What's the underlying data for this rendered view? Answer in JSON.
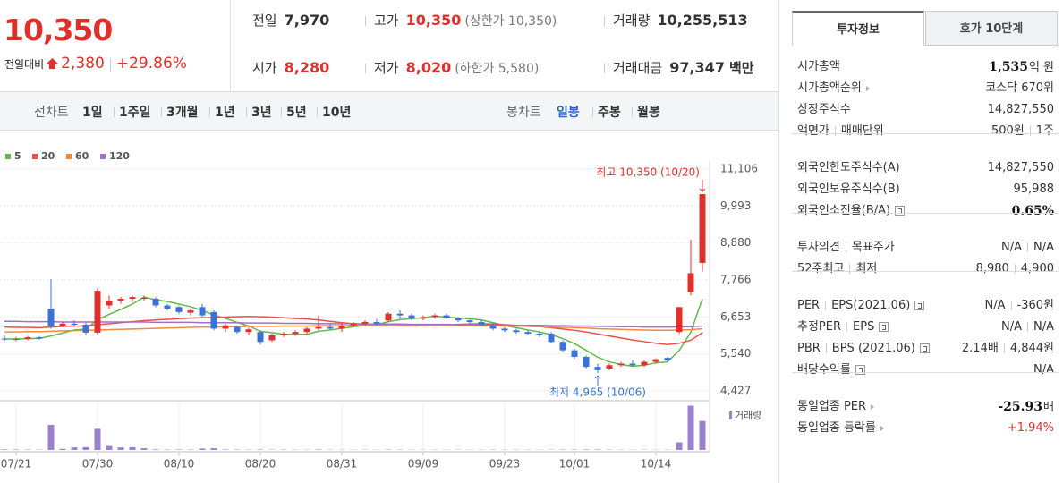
{
  "header": {
    "price": "10,350",
    "change_label": "전일대비",
    "change": "2,380",
    "change_rate": "+29.86%",
    "stats": [
      {
        "label": "전일",
        "value": "7,970"
      },
      {
        "label": "고가",
        "value": "10,350",
        "note": "(상한가 10,350)",
        "highlight": true
      },
      {
        "label": "거래량",
        "value": "10,255,513"
      },
      {
        "label": "시가",
        "value": "8,280",
        "highlight": true
      },
      {
        "label": "저가",
        "value": "8,020",
        "note": "(하한가 5,580)",
        "highlight": true
      },
      {
        "label": "거래대금",
        "value": "97,347",
        "unit": "백만"
      }
    ]
  },
  "toolbar": {
    "line_chart": {
      "label": "선차트",
      "options": [
        "1일",
        "1주일",
        "3개월",
        "1년",
        "3년",
        "5년",
        "10년"
      ]
    },
    "candle_chart": {
      "label": "봉차트",
      "options": [
        "일봉",
        "주봉",
        "월봉"
      ],
      "active": 0
    }
  },
  "chart_data": {
    "type": "candlestick",
    "categories": [
      null,
      "07/21",
      null,
      null,
      null,
      null,
      null,
      null,
      "07/30",
      null,
      null,
      null,
      null,
      null,
      null,
      "08/10",
      null,
      null,
      null,
      null,
      null,
      null,
      "08/20",
      null,
      null,
      null,
      null,
      null,
      null,
      "08/31",
      null,
      null,
      null,
      null,
      null,
      null,
      "09/09",
      null,
      null,
      null,
      null,
      null,
      null,
      "09/23",
      null,
      null,
      null,
      null,
      null,
      "10/01",
      null,
      null,
      null,
      null,
      null,
      null,
      "10/14",
      null,
      null,
      null,
      null
    ],
    "open": [
      6000,
      5980,
      5990,
      6040,
      6900,
      6380,
      6450,
      6420,
      6180,
      7000,
      7150,
      7200,
      7200,
      7200,
      7000,
      6950,
      6780,
      6950,
      6800,
      6300,
      6350,
      6200,
      6200,
      5950,
      6100,
      6150,
      6200,
      6300,
      6350,
      6300,
      6400,
      6450,
      6500,
      6550,
      6750,
      6700,
      6600,
      6650,
      6700,
      6620,
      6550,
      6500,
      6400,
      6300,
      6250,
      6200,
      6150,
      6150,
      5900,
      5650,
      5450,
      5150,
      5100,
      5200,
      5250,
      5200,
      5300,
      5420,
      6200,
      7400,
      8280
    ],
    "high": [
      6100,
      6050,
      6080,
      6080,
      7790,
      6500,
      6550,
      6480,
      7520,
      7300,
      7250,
      7300,
      7300,
      7250,
      7050,
      7000,
      6900,
      7050,
      6850,
      6450,
      6400,
      6330,
      6250,
      6150,
      6200,
      6250,
      6350,
      6700,
      6450,
      6450,
      6500,
      6550,
      6600,
      6800,
      6850,
      6750,
      6700,
      6750,
      6750,
      6650,
      6600,
      6550,
      6450,
      6350,
      6300,
      6250,
      6200,
      6200,
      5950,
      5700,
      5500,
      5250,
      5250,
      5300,
      5350,
      5350,
      5400,
      5450,
      6950,
      8980,
      10350
    ],
    "low": [
      5930,
      5920,
      5950,
      5970,
      6300,
      6350,
      6380,
      6100,
      6120,
      6900,
      7050,
      7100,
      7150,
      6950,
      6850,
      6750,
      6700,
      6650,
      6250,
      6200,
      6150,
      6100,
      5820,
      5900,
      6050,
      6080,
      6150,
      6250,
      6250,
      6200,
      6350,
      6380,
      6400,
      6500,
      6600,
      6550,
      6550,
      6600,
      6600,
      6500,
      6450,
      6380,
      6250,
      6200,
      6150,
      6100,
      6050,
      5850,
      5600,
      5400,
      5100,
      4965,
      5050,
      5150,
      5150,
      5150,
      5250,
      5300,
      6150,
      7300,
      8020
    ],
    "close": [
      5980,
      5990,
      6040,
      6000,
      6380,
      6450,
      6420,
      6180,
      7440,
      7150,
      7200,
      7250,
      7230,
      7000,
      6900,
      6800,
      6850,
      6700,
      6300,
      6400,
      6200,
      6280,
      5900,
      6100,
      6150,
      6200,
      6300,
      6350,
      6300,
      6400,
      6450,
      6500,
      6450,
      6750,
      6700,
      6600,
      6650,
      6700,
      6620,
      6550,
      6500,
      6420,
      6300,
      6250,
      6200,
      6150,
      6100,
      5900,
      5650,
      5450,
      5150,
      5050,
      5200,
      5250,
      5200,
      5300,
      5380,
      5350,
      6950,
      7970,
      10350
    ],
    "up_color": "#e0302c",
    "down_color": "#3a73d6",
    "moving_averages": [
      {
        "name": "5",
        "color": "#62b84a",
        "values": [
          5990,
          5990,
          6000,
          6010,
          6080,
          6170,
          6260,
          6290,
          6570,
          6730,
          6880,
          7040,
          7250,
          7170,
          7120,
          7040,
          6960,
          6850,
          6710,
          6610,
          6490,
          6380,
          6220,
          6180,
          6130,
          6130,
          6130,
          6220,
          6260,
          6310,
          6360,
          6400,
          6420,
          6510,
          6570,
          6600,
          6630,
          6680,
          6650,
          6620,
          6600,
          6560,
          6480,
          6400,
          6330,
          6260,
          6200,
          6120,
          6000,
          5850,
          5650,
          5440,
          5300,
          5220,
          5170,
          5200,
          5270,
          5300,
          5640,
          6190,
          7200
        ]
      },
      {
        "name": "20",
        "color": "#e8504a",
        "values": [
          6350,
          6340,
          6340,
          6330,
          6350,
          6370,
          6380,
          6380,
          6420,
          6450,
          6480,
          6510,
          6540,
          6560,
          6580,
          6600,
          6620,
          6630,
          6640,
          6650,
          6660,
          6670,
          6660,
          6650,
          6630,
          6610,
          6590,
          6560,
          6520,
          6480,
          6450,
          6430,
          6410,
          6400,
          6390,
          6390,
          6400,
          6410,
          6420,
          6430,
          6440,
          6450,
          6440,
          6420,
          6400,
          6380,
          6360,
          6330,
          6290,
          6250,
          6200,
          6140,
          6080,
          6020,
          5960,
          5910,
          5860,
          5820,
          5860,
          5950,
          6180
        ]
      },
      {
        "name": "60",
        "color": "#f08a3c",
        "values": [
          6200,
          6200,
          6210,
          6210,
          6220,
          6230,
          6240,
          6250,
          6260,
          6270,
          6280,
          6290,
          6300,
          6310,
          6320,
          6330,
          6340,
          6350,
          6350,
          6360,
          6360,
          6370,
          6370,
          6370,
          6380,
          6380,
          6380,
          6390,
          6390,
          6390,
          6400,
          6400,
          6400,
          6400,
          6400,
          6400,
          6400,
          6400,
          6400,
          6400,
          6400,
          6390,
          6390,
          6380,
          6380,
          6370,
          6360,
          6350,
          6340,
          6330,
          6320,
          6300,
          6290,
          6280,
          6270,
          6260,
          6250,
          6250,
          6260,
          6270,
          6300
        ]
      },
      {
        "name": "120",
        "color": "#9b72c8",
        "values": [
          6520,
          6520,
          6510,
          6510,
          6510,
          6500,
          6500,
          6500,
          6500,
          6500,
          6500,
          6500,
          6500,
          6490,
          6490,
          6490,
          6490,
          6480,
          6480,
          6480,
          6480,
          6470,
          6470,
          6470,
          6460,
          6460,
          6460,
          6450,
          6450,
          6450,
          6450,
          6440,
          6440,
          6440,
          6440,
          6430,
          6430,
          6430,
          6430,
          6420,
          6420,
          6420,
          6410,
          6410,
          6400,
          6400,
          6400,
          6390,
          6390,
          6380,
          6380,
          6370,
          6370,
          6360,
          6360,
          6350,
          6350,
          6350,
          6350,
          6360,
          6380
        ]
      }
    ],
    "ylim": [
      4427,
      11106
    ],
    "yticks": [
      {
        "value": 11106,
        "label": "11,106"
      },
      {
        "value": 9993,
        "label": "9,993"
      },
      {
        "value": 8880,
        "label": "8,880"
      },
      {
        "value": 7766,
        "label": "7,766"
      },
      {
        "value": 6653,
        "label": "6,653"
      },
      {
        "value": 5540,
        "label": "5,540"
      },
      {
        "value": 4427,
        "label": "4,427"
      }
    ],
    "grid": true,
    "volume": {
      "name": "거래량",
      "color": "#9b80cf",
      "ylim": [
        0,
        16500000
      ],
      "values": [
        200000,
        150000,
        120000,
        100000,
        8900000,
        400000,
        900000,
        1000000,
        7500000,
        1400000,
        900000,
        1000000,
        600000,
        200000,
        150000,
        150000,
        150000,
        500000,
        600000,
        150000,
        120000,
        100000,
        150000,
        100000,
        100000,
        80000,
        80000,
        150000,
        80000,
        80000,
        80000,
        80000,
        80000,
        120000,
        100000,
        80000,
        80000,
        80000,
        80000,
        80000,
        80000,
        80000,
        100000,
        80000,
        80000,
        80000,
        80000,
        100000,
        120000,
        120000,
        150000,
        150000,
        100000,
        80000,
        80000,
        80000,
        80000,
        80000,
        2700000,
        15700000,
        10255513
      ]
    },
    "annotations": {
      "high": "최고 10,350 (10/20)",
      "low": "최저 4,965 (10/06)"
    }
  },
  "info_panel": {
    "tabs": [
      "투자정보",
      "호가 10단계"
    ],
    "active_tab": 0,
    "sections": [
      [
        {
          "label": [
            "시가총액"
          ],
          "value": [
            "1,535"
          ],
          "unit": "억 원",
          "bold": true
        },
        {
          "label": [
            "시가총액순위"
          ],
          "arrow": true,
          "value": [
            "코스닥 670위"
          ]
        },
        {
          "label": [
            "상장주식수"
          ],
          "value": [
            "14,827,550"
          ]
        },
        {
          "label": [
            "액면가",
            "매매단위"
          ],
          "value": [
            "500원",
            "1주"
          ]
        }
      ],
      [
        {
          "label": [
            "외국인한도주식수(A)"
          ],
          "value": [
            "14,827,550"
          ]
        },
        {
          "label": [
            "외국인보유주식수(B)"
          ],
          "value": [
            "95,988"
          ]
        },
        {
          "label": [
            "외국인소진율(B/A)"
          ],
          "help": true,
          "value": [
            "0.65%"
          ],
          "bold": true
        }
      ],
      [
        {
          "label": [
            "투자의견",
            "목표주가"
          ],
          "value": [
            "N/A",
            "N/A"
          ]
        },
        {
          "label": [
            "52주최고",
            "최저"
          ],
          "value": [
            "8,980",
            "4,900"
          ]
        }
      ],
      [
        {
          "label": [
            "PER",
            "EPS(2021.06)"
          ],
          "help": true,
          "value": [
            "N/A",
            "-360원"
          ]
        },
        {
          "label": [
            "추정PER",
            "EPS"
          ],
          "help": true,
          "value": [
            "N/A",
            "N/A"
          ]
        },
        {
          "label": [
            "PBR",
            "BPS (2021.06)"
          ],
          "help": true,
          "value": [
            "2.14배",
            "4,844원"
          ]
        },
        {
          "label": [
            "배당수익률"
          ],
          "help": true,
          "value": [
            "N/A"
          ]
        }
      ],
      [
        {
          "label": [
            "동일업종 PER"
          ],
          "arrow": true,
          "value": [
            "-25.93"
          ],
          "unit": "배",
          "bold": true
        },
        {
          "label": [
            "동일업종 등락률"
          ],
          "arrow": true,
          "value": [
            "+1.94%"
          ],
          "red": true
        }
      ]
    ]
  }
}
